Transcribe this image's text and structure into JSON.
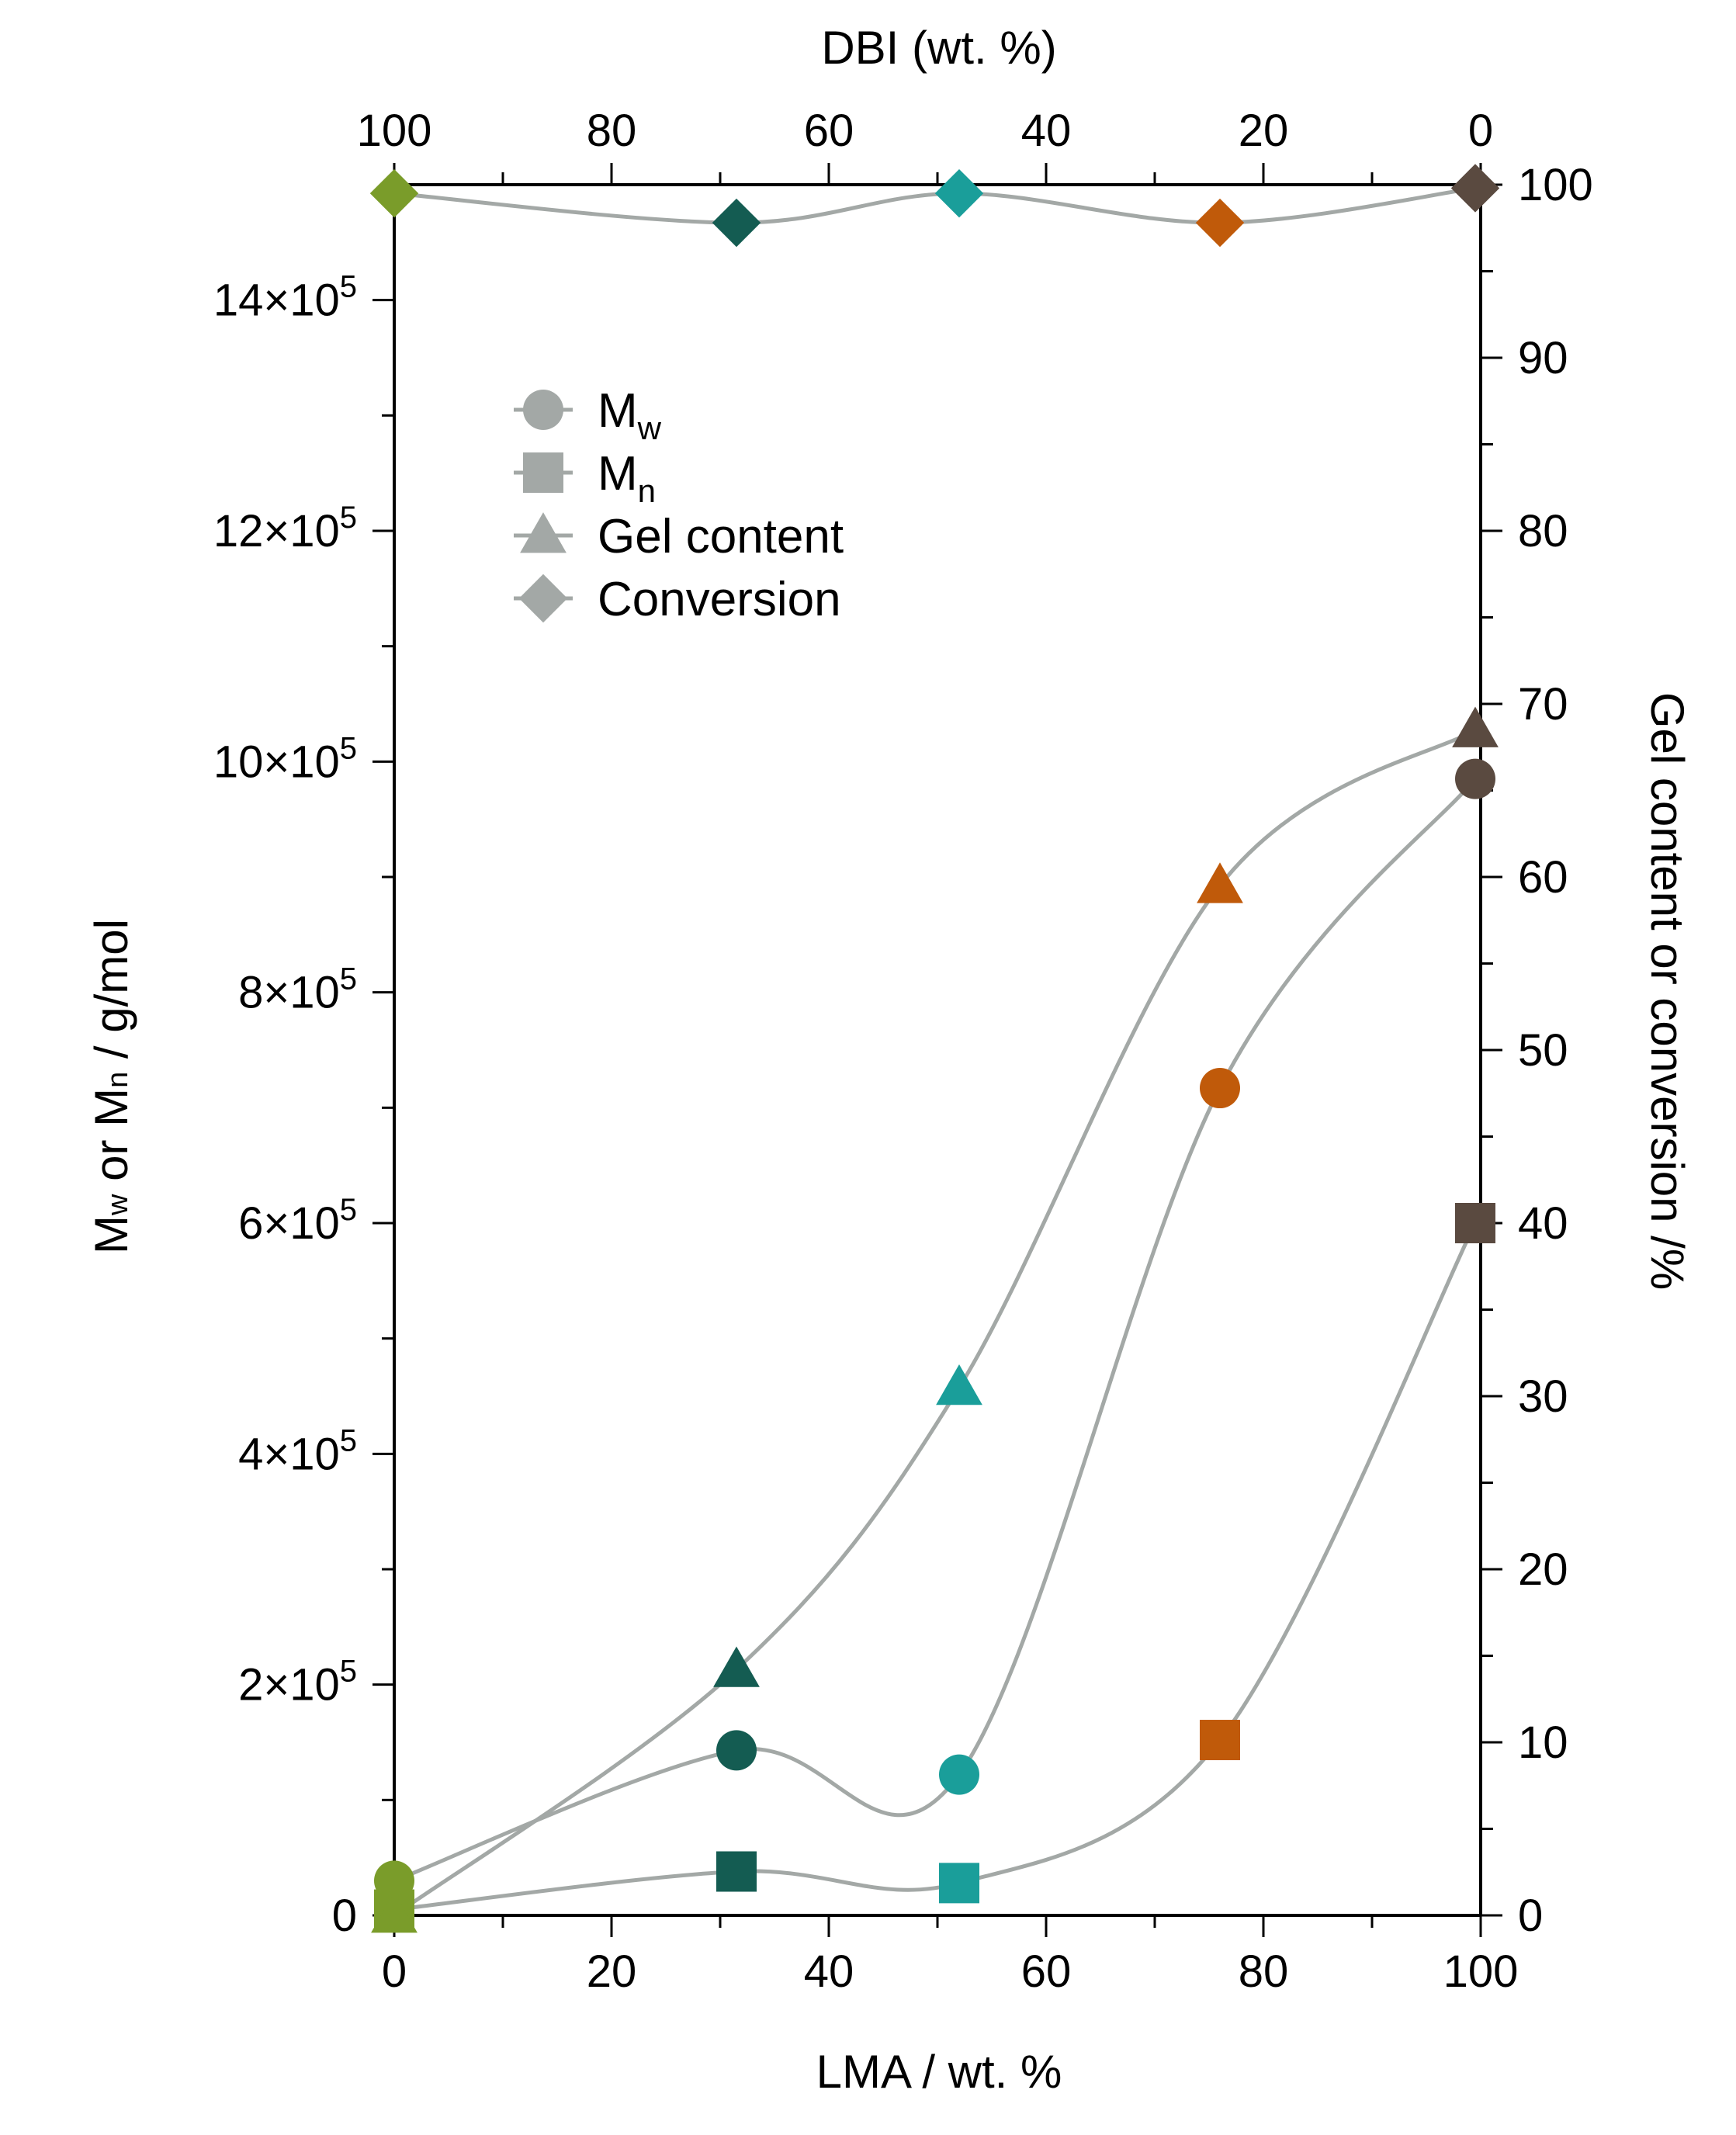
{
  "chart_data": {
    "type": "scatter",
    "x_axis": {
      "label": "LMA / wt. %",
      "range": [
        0,
        100
      ],
      "ticks": [
        "0",
        "20",
        "40",
        "60",
        "80",
        "100"
      ],
      "tick_values": [
        0,
        20,
        40,
        60,
        80,
        100
      ]
    },
    "top_axis": {
      "label": "DBI (wt. %)",
      "ticks": [
        "100",
        "80",
        "60",
        "40",
        "20",
        "0"
      ],
      "tick_values": [
        100,
        80,
        60,
        40,
        20,
        0
      ]
    },
    "left_axis": {
      "label": "Mw or Mn / g/mol",
      "label_parts": {
        "a": "M",
        "a_sub": "w",
        "b": " or M",
        "b_sub": "n",
        "c": " / g/mol"
      },
      "range": [
        0,
        1500000
      ],
      "tick_values": [
        0,
        200000,
        400000,
        600000,
        800000,
        1000000,
        1200000,
        1400000
      ],
      "ticks": [
        {
          "mant": "0",
          "exp": ""
        },
        {
          "mant": "2×10",
          "exp": "5"
        },
        {
          "mant": "4×10",
          "exp": "5"
        },
        {
          "mant": "6×10",
          "exp": "5"
        },
        {
          "mant": "8×10",
          "exp": "5"
        },
        {
          "mant": "10×10",
          "exp": "5"
        },
        {
          "mant": "12×10",
          "exp": "5"
        },
        {
          "mant": "14×10",
          "exp": "5"
        }
      ]
    },
    "right_axis": {
      "label": "Gel content or conversion /%",
      "range": [
        0,
        100
      ],
      "ticks": [
        "0",
        "10",
        "20",
        "30",
        "40",
        "50",
        "60",
        "70",
        "80",
        "90",
        "100"
      ],
      "tick_values": [
        0,
        10,
        20,
        30,
        40,
        50,
        60,
        70,
        80,
        90,
        100
      ]
    },
    "legend": [
      {
        "name": "Mw",
        "main": "M",
        "sub": "w",
        "marker": "circle"
      },
      {
        "name": "Mn",
        "main": "M",
        "sub": "n",
        "marker": "square"
      },
      {
        "name": "Gel content",
        "main": "Gel content",
        "sub": "",
        "marker": "triangle"
      },
      {
        "name": "Conversion",
        "main": "Conversion",
        "sub": "",
        "marker": "diamond"
      }
    ],
    "point_colors": [
      "#7a9c2a",
      "#145c52",
      "#1a9e9a",
      "#c05a0a",
      "#5a4a40"
    ],
    "line_color": "#a3a8a6",
    "legend_color": "#a3a8a6",
    "series": [
      {
        "name": "Mw",
        "axis": "left",
        "marker": "circle",
        "x": [
          0,
          31.5,
          52,
          76,
          99.5
        ],
        "y": [
          30000,
          143000,
          122000,
          717000,
          985000
        ]
      },
      {
        "name": "Mn",
        "axis": "left",
        "marker": "square",
        "x": [
          0,
          31.5,
          52,
          76,
          99.5
        ],
        "y": [
          5000,
          38000,
          28000,
          152000,
          600000
        ]
      },
      {
        "name": "Gel content",
        "axis": "right",
        "marker": "triangle",
        "x": [
          0,
          31.5,
          52,
          76,
          99.5
        ],
        "y": [
          0,
          14.2,
          30.5,
          59.5,
          68.5
        ]
      },
      {
        "name": "Conversion",
        "axis": "right",
        "marker": "diamond",
        "x": [
          0,
          31.5,
          52,
          76,
          99.5
        ],
        "y": [
          99.5,
          97.8,
          99.5,
          97.8,
          99.8
        ]
      }
    ]
  }
}
